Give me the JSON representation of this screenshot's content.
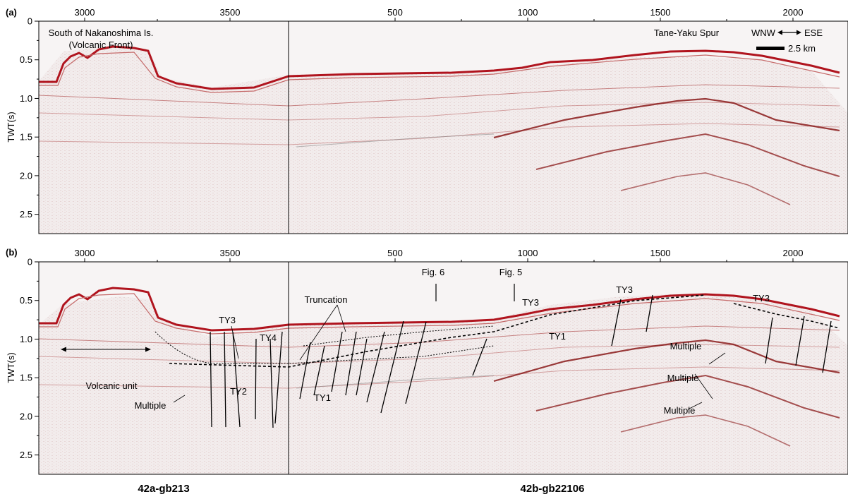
{
  "panels": [
    {
      "label": "(a)",
      "top_axis": {
        "left_ticks": [
          {
            "value": "3000",
            "pos": 3000
          },
          {
            "value": "3500",
            "pos": 3500
          }
        ],
        "right_ticks": [
          {
            "value": "500",
            "pos": 500
          },
          {
            "value": "1000",
            "pos": 1000
          },
          {
            "value": "1500",
            "pos": 1500
          },
          {
            "value": "2000",
            "pos": 2000
          }
        ]
      },
      "y_axis": {
        "label": "TWT(s)",
        "ticks": [
          "0",
          "0.5",
          "1.0",
          "1.5",
          "2.0",
          "2.5"
        ],
        "range": [
          0,
          2.75
        ]
      },
      "annotations": {
        "location_line1": "South of Nakanoshima Is.",
        "location_line2": "(Volcanic Front)",
        "spur": "Tane-Yaku Spur",
        "dir_left": "WNW",
        "dir_right": "ESE",
        "scale": "2.5 km"
      }
    },
    {
      "label": "(b)",
      "top_axis": {
        "left_ticks": [
          {
            "value": "3000",
            "pos": 3000
          },
          {
            "value": "3500",
            "pos": 3500
          }
        ],
        "right_ticks": [
          {
            "value": "500",
            "pos": 500
          },
          {
            "value": "1000",
            "pos": 1000
          },
          {
            "value": "1500",
            "pos": 1500
          },
          {
            "value": "2000",
            "pos": 2000
          }
        ]
      },
      "y_axis": {
        "label": "TWT(s)",
        "ticks": [
          "0",
          "0.5",
          "1.0",
          "1.5",
          "2.0",
          "2.5"
        ],
        "range": [
          0,
          2.75
        ]
      },
      "annotations": {
        "fig6": "Fig. 6",
        "fig5": "Fig. 5",
        "truncation": "Truncation",
        "volcanic_unit": "Volcanic unit",
        "multiple_left": "Multiple",
        "ty3_a": "TY3",
        "ty4": "TY4",
        "ty2": "TY2",
        "ty1_left": "TY1",
        "ty3_b": "TY3",
        "ty1_right": "TY1",
        "ty3_c": "TY3",
        "ty3_d": "TY3",
        "multiple_1": "Multiple",
        "multiple_2": "Multiple",
        "multiple_3": "Multiple"
      }
    }
  ],
  "line_names": {
    "left": "42a-gb213",
    "right": "42b-gb22106"
  },
  "colors": {
    "reflector": "#b0141e",
    "background": "#f3eeee",
    "frame": "#000000"
  }
}
